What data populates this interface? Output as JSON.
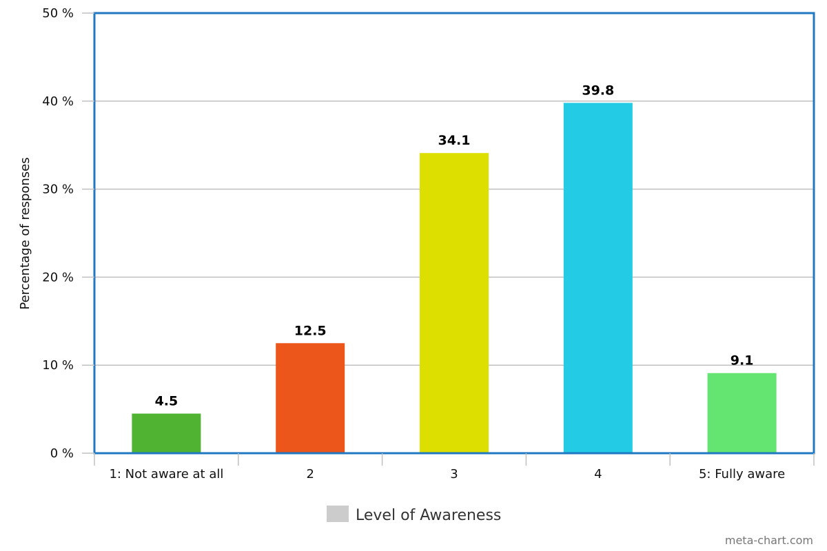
{
  "chart_data": {
    "type": "bar",
    "categories": [
      "1: Not aware at all",
      "2",
      "3",
      "4",
      "5: Fully aware"
    ],
    "series": [
      {
        "name": "Level of Awareness",
        "values": [
          4.5,
          12.5,
          34.1,
          39.8,
          9.1
        ],
        "data_labels": [
          "4.5",
          "12.5",
          "34.1",
          "39.8",
          "9.1"
        ]
      }
    ],
    "bar_colors": [
      "#50b432",
      "#ed561b",
      "#dddf00",
      "#24cbe5",
      "#64e572"
    ],
    "ylabel": "Percentage of responses",
    "ylim": [
      0,
      50
    ],
    "yticks": [
      0,
      10,
      20,
      30,
      40,
      50
    ],
    "ytick_labels": [
      "0 %",
      "10 %",
      "20 %",
      "30 %",
      "40 %",
      "50 %"
    ],
    "grid": true,
    "legend": {
      "position": "bottom-center",
      "swatch_color": "#cccccc"
    },
    "plot_border_color": "#1f78c1"
  },
  "credit": "meta-chart.com"
}
